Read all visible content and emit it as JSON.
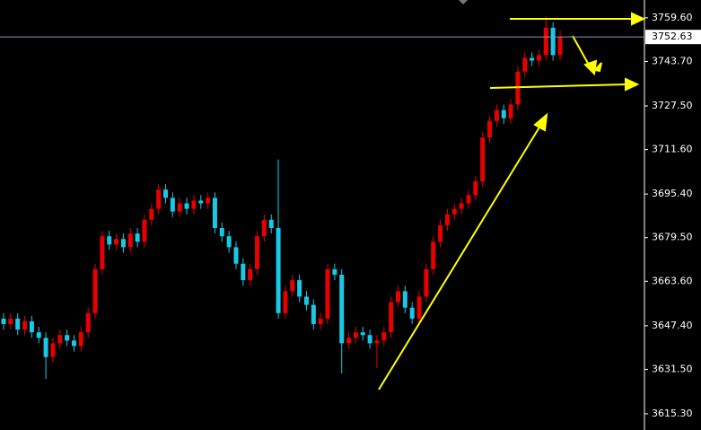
{
  "chart_data": {
    "type": "candlestick",
    "open": [
      3650,
      3648,
      3650,
      3646,
      3649,
      3645,
      3643,
      3636,
      3641,
      3644,
      3642,
      3640,
      3645,
      3652,
      3668,
      3680,
      3677,
      3679,
      3676,
      3681,
      3678,
      3686,
      3690,
      3697,
      3694,
      3689,
      3692,
      3690,
      3693,
      3692,
      3694,
      3683,
      3680,
      3676,
      3670,
      3664,
      3668,
      3680,
      3686,
      3683,
      3652,
      3660,
      3664,
      3658,
      3655,
      3648,
      3650,
      3668,
      3666,
      3641,
      3643,
      3645,
      3644,
      3641,
      3642,
      3645,
      3656,
      3660,
      3654,
      3650,
      3658,
      3668,
      3678,
      3684,
      3688,
      3690,
      3692,
      3695,
      3700,
      3716,
      3722,
      3726,
      3723,
      3728,
      3740,
      3745,
      3744,
      3746,
      3756,
      3746
    ],
    "high": [
      3652,
      3652,
      3652,
      3651,
      3651,
      3647,
      3645,
      3643,
      3646,
      3646,
      3644,
      3647,
      3654,
      3670,
      3682,
      3682,
      3681,
      3681,
      3683,
      3683,
      3688,
      3692,
      3699,
      3699,
      3696,
      3694,
      3694,
      3695,
      3695,
      3696,
      3696,
      3685,
      3682,
      3678,
      3672,
      3670,
      3682,
      3688,
      3688,
      3708,
      3662,
      3666,
      3666,
      3660,
      3657,
      3652,
      3670,
      3670,
      3668,
      3645,
      3647,
      3647,
      3646,
      3644,
      3647,
      3658,
      3662,
      3662,
      3656,
      3660,
      3670,
      3680,
      3686,
      3690,
      3692,
      3694,
      3697,
      3702,
      3718,
      3724,
      3728,
      3728,
      3730,
      3742,
      3747,
      3747,
      3748,
      3760,
      3758,
      3755
    ],
    "low": [
      3646,
      3646,
      3644,
      3644,
      3643,
      3641,
      3628,
      3634,
      3639,
      3640,
      3638,
      3638,
      3643,
      3650,
      3666,
      3675,
      3675,
      3674,
      3674,
      3676,
      3676,
      3684,
      3688,
      3692,
      3687,
      3687,
      3688,
      3688,
      3690,
      3690,
      3681,
      3678,
      3674,
      3668,
      3662,
      3662,
      3666,
      3678,
      3681,
      3650,
      3650,
      3658,
      3656,
      3653,
      3646,
      3646,
      3648,
      3664,
      3630,
      3639,
      3641,
      3642,
      3639,
      3632,
      3640,
      3643,
      3654,
      3652,
      3648,
      3648,
      3656,
      3666,
      3676,
      3682,
      3686,
      3688,
      3690,
      3693,
      3698,
      3714,
      3720,
      3721,
      3721,
      3726,
      3738,
      3742,
      3742,
      3744,
      3744,
      3744
    ],
    "close": [
      3648,
      3650,
      3646,
      3649,
      3645,
      3643,
      3636,
      3641,
      3644,
      3642,
      3640,
      3645,
      3652,
      3668,
      3680,
      3677,
      3679,
      3676,
      3681,
      3678,
      3686,
      3690,
      3697,
      3694,
      3689,
      3692,
      3690,
      3693,
      3692,
      3694,
      3683,
      3680,
      3676,
      3670,
      3664,
      3668,
      3680,
      3686,
      3683,
      3652,
      3660,
      3664,
      3658,
      3655,
      3648,
      3650,
      3668,
      3666,
      3641,
      3643,
      3645,
      3644,
      3641,
      3642,
      3645,
      3656,
      3660,
      3654,
      3650,
      3658,
      3668,
      3678,
      3684,
      3688,
      3690,
      3692,
      3695,
      3700,
      3716,
      3722,
      3726,
      3723,
      3728,
      3740,
      3745,
      3744,
      3746,
      3756,
      3746,
      3752.63
    ],
    "up_color": "#e60000",
    "down_color": "#19c8e6",
    "current_price": {
      "value": 3752.63,
      "label": "3752.63"
    },
    "ylim": [
      3609.4,
      3766.1
    ],
    "yticks": [
      {
        "value": 3759.6,
        "label": "3759.60"
      },
      {
        "value": 3743.7,
        "label": "3743.70"
      },
      {
        "value": 3727.5,
        "label": "3727.50"
      },
      {
        "value": 3711.6,
        "label": "3711.60"
      },
      {
        "value": 3695.4,
        "label": "3695.40"
      },
      {
        "value": 3679.5,
        "label": "3679.50"
      },
      {
        "value": 3663.6,
        "label": "3663.60"
      },
      {
        "value": 3647.4,
        "label": "3647.40"
      },
      {
        "value": 3631.5,
        "label": "3631.50"
      },
      {
        "value": 3615.3,
        "label": "3615.30"
      }
    ]
  }
}
